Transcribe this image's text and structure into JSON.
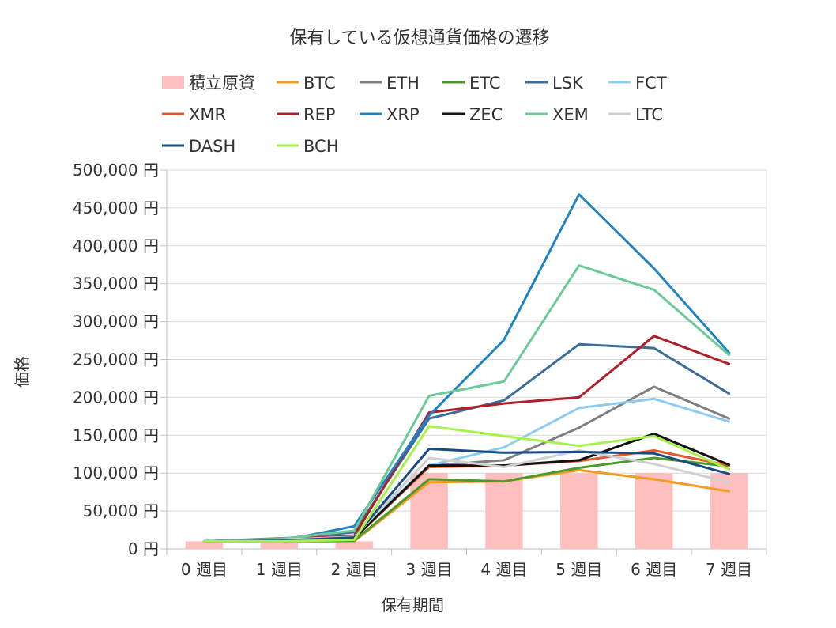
{
  "chart_data": {
    "type": "bar+line",
    "title": "保有している仮想通貨価格の遷移",
    "xlabel": "保有期間",
    "ylabel": "価格",
    "ylim": [
      0,
      500000
    ],
    "y_ticks": [
      "0 円",
      "50,000 円",
      "100,000 円",
      "150,000 円",
      "200,000 円",
      "250,000 円",
      "300,000 円",
      "350,000 円",
      "400,000 円",
      "450,000 円",
      "500,000 円"
    ],
    "y_tick_values": [
      0,
      50000,
      100000,
      150000,
      200000,
      250000,
      300000,
      350000,
      400000,
      450000,
      500000
    ],
    "categories": [
      "0 週目",
      "1 週目",
      "2 週目",
      "3 週目",
      "4 週目",
      "5 週目",
      "6 週目",
      "7 週目"
    ],
    "grid": true,
    "legend_position": "top",
    "bar_series": {
      "name": "積立原資",
      "color": "#ffbfbf",
      "values": [
        10000,
        10000,
        10000,
        100000,
        100000,
        100000,
        100000,
        100000
      ]
    },
    "line_series": [
      {
        "name": "BTC",
        "color": "#f39c23",
        "values": [
          10000,
          10000,
          10000,
          88000,
          89000,
          104000,
          92000,
          76000
        ]
      },
      {
        "name": "ETH",
        "color": "#7f7f7f",
        "values": [
          10000,
          14000,
          17000,
          110000,
          117000,
          160000,
          214000,
          172000
        ]
      },
      {
        "name": "ETC",
        "color": "#4d9a2a",
        "values": [
          10000,
          10000,
          11000,
          92000,
          89000,
          107000,
          120000,
          109000
        ]
      },
      {
        "name": "LSK",
        "color": "#3d6c99",
        "values": [
          10000,
          13000,
          22000,
          172000,
          196000,
          270000,
          265000,
          205000
        ]
      },
      {
        "name": "FCT",
        "color": "#8ecbf0",
        "values": [
          10000,
          12000,
          18000,
          110000,
          134000,
          186000,
          198000,
          168000
        ]
      },
      {
        "name": "XMR",
        "color": "#e8562a",
        "values": [
          10000,
          11000,
          14000,
          108000,
          110000,
          116000,
          130000,
          110000
        ]
      },
      {
        "name": "REP",
        "color": "#b01e2a",
        "values": [
          10000,
          13000,
          17000,
          180000,
          192000,
          200000,
          281000,
          244000
        ]
      },
      {
        "name": "XRP",
        "color": "#1f83c2",
        "values": [
          10000,
          10000,
          30000,
          176000,
          276000,
          468000,
          370000,
          259000
        ]
      },
      {
        "name": "ZEC",
        "color": "#111111",
        "values": [
          10000,
          11000,
          14000,
          110000,
          110000,
          117000,
          152000,
          111000
        ]
      },
      {
        "name": "XEM",
        "color": "#6dc996",
        "values": [
          10000,
          13000,
          24000,
          202000,
          221000,
          374000,
          342000,
          256000
        ]
      },
      {
        "name": "LTC",
        "color": "#d0d0d0",
        "values": [
          10000,
          12000,
          16000,
          120000,
          108000,
          130000,
          112000,
          88000
        ]
      },
      {
        "name": "DASH",
        "color": "#1b4c80",
        "values": [
          10000,
          11000,
          15000,
          132000,
          127000,
          128000,
          126000,
          99000
        ]
      },
      {
        "name": "BCH",
        "color": "#a6f24a",
        "values": [
          10000,
          10000,
          12000,
          162000,
          149000,
          136000,
          149000,
          105000
        ]
      }
    ]
  }
}
